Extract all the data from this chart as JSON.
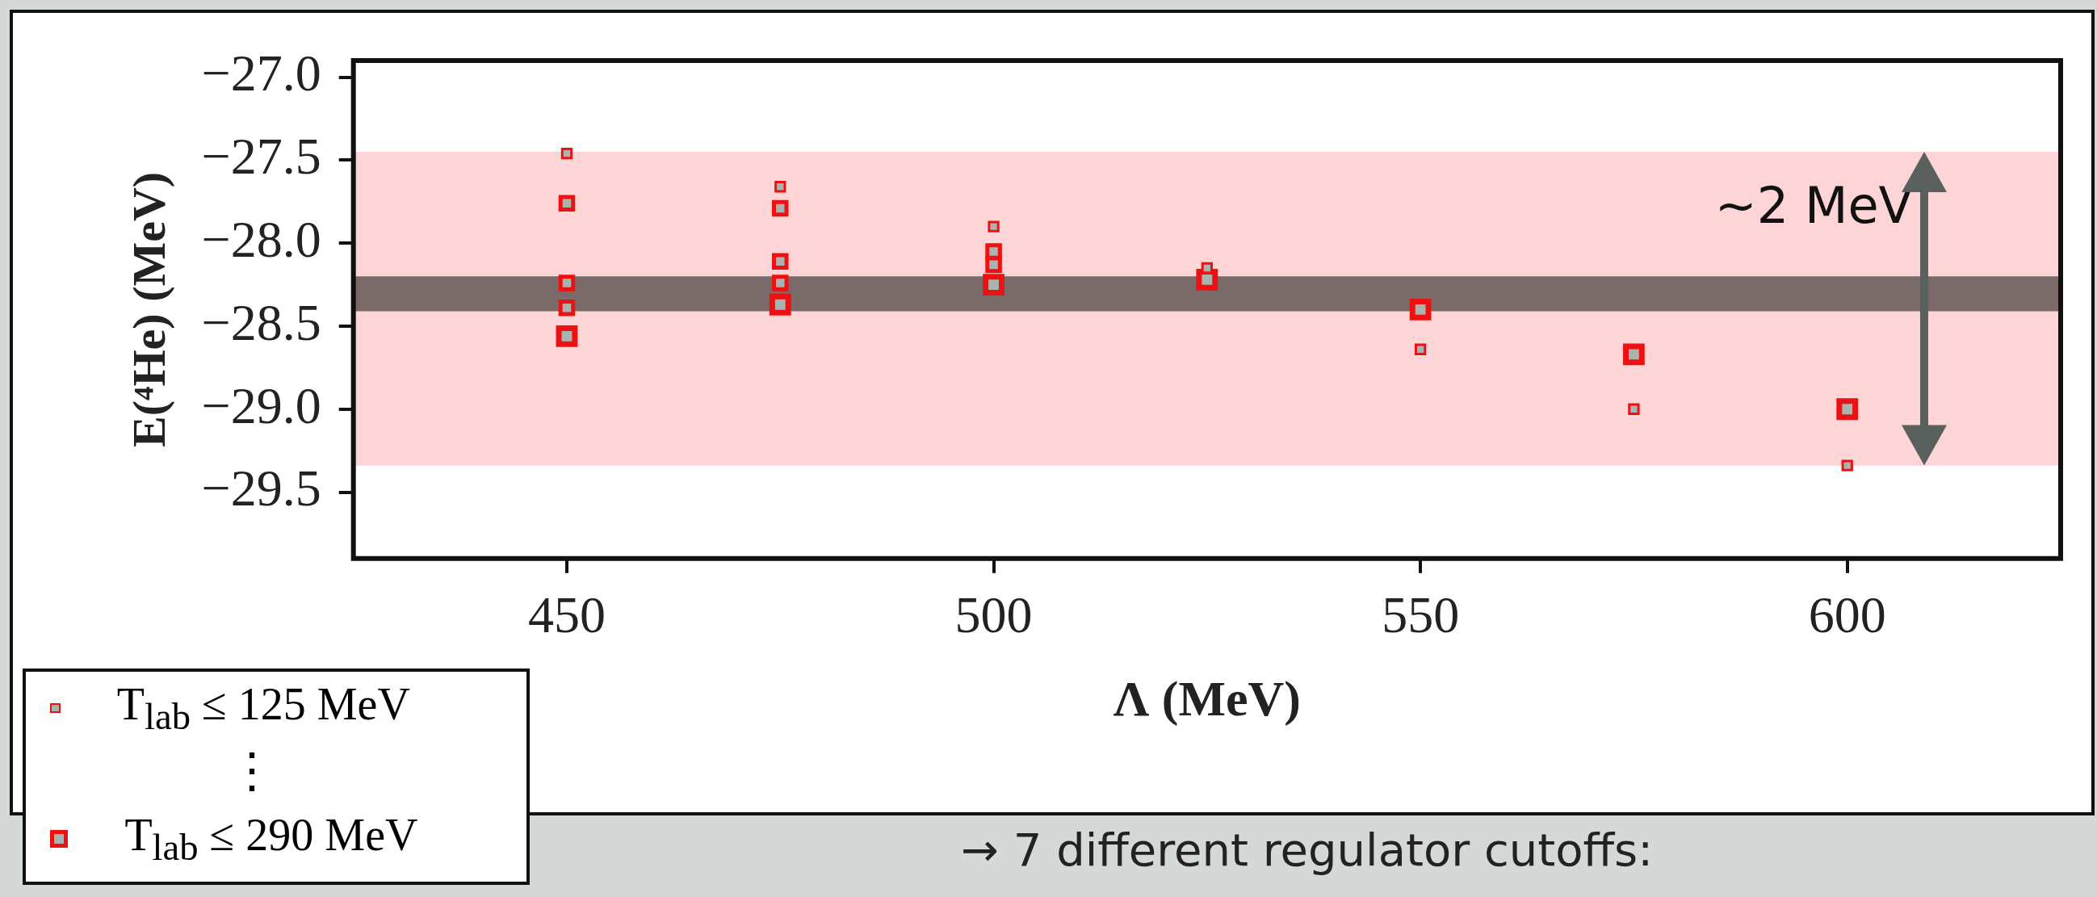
{
  "chart_data": {
    "type": "scatter",
    "xlabel": "Λ (MeV)",
    "ylabel": "E(⁴He) (MeV)",
    "xlim": [
      425,
      625
    ],
    "xticks": [
      450,
      500,
      550,
      600
    ],
    "ylim": [
      -29.9,
      -26.9
    ],
    "yticks": [
      {
        "value": -27,
        "label": "−27.0"
      },
      {
        "value": -27.5,
        "label": "−27.5"
      },
      {
        "value": -28,
        "label": "−28.0"
      },
      {
        "value": -28.5,
        "label": "−28.5"
      },
      {
        "value": -29,
        "label": "−29.0"
      },
      {
        "value": -29.5,
        "label": "−29.5"
      }
    ],
    "series": [
      {
        "name": "T$_{lab}$ ≤ 125 MeV",
        "color": "#ee1111",
        "x": [
          450,
          475,
          500,
          525,
          550,
          575,
          600
        ],
        "values": [
          -27.46,
          -27.66,
          -27.9,
          -28.15,
          -28.64,
          -29.0,
          -29.34
        ]
      },
      {
        "color": "#ee1111",
        "x": [
          450,
          450,
          450,
          475,
          475,
          475,
          500,
          500
        ],
        "values": [
          -27.76,
          -28.24,
          -28.39,
          -27.79,
          -28.11,
          -28.24,
          -28.05,
          -28.13
        ]
      },
      {
        "name": "T$_{lab}$ ≤ 290 MeV",
        "color": "#ee1111",
        "x": [
          450,
          475,
          500,
          525,
          550,
          575,
          600
        ],
        "values": [
          -28.56,
          -28.37,
          -28.25,
          -28.22,
          -28.4,
          -28.67,
          -29.0
        ]
      }
    ],
    "marker": "square",
    "grid": false,
    "legend": "bottom left",
    "bands": [
      {
        "axis": "y",
        "from": -29.34,
        "to": -27.45,
        "color": "#fdd5d6"
      },
      {
        "axis": "y",
        "from": -28.41,
        "to": -28.2,
        "color": "#7a6a6a"
      }
    ],
    "annotations": [
      "~2 MeV",
      "⋮",
      "→ 7 different regulator cutoffs:"
    ]
  }
}
